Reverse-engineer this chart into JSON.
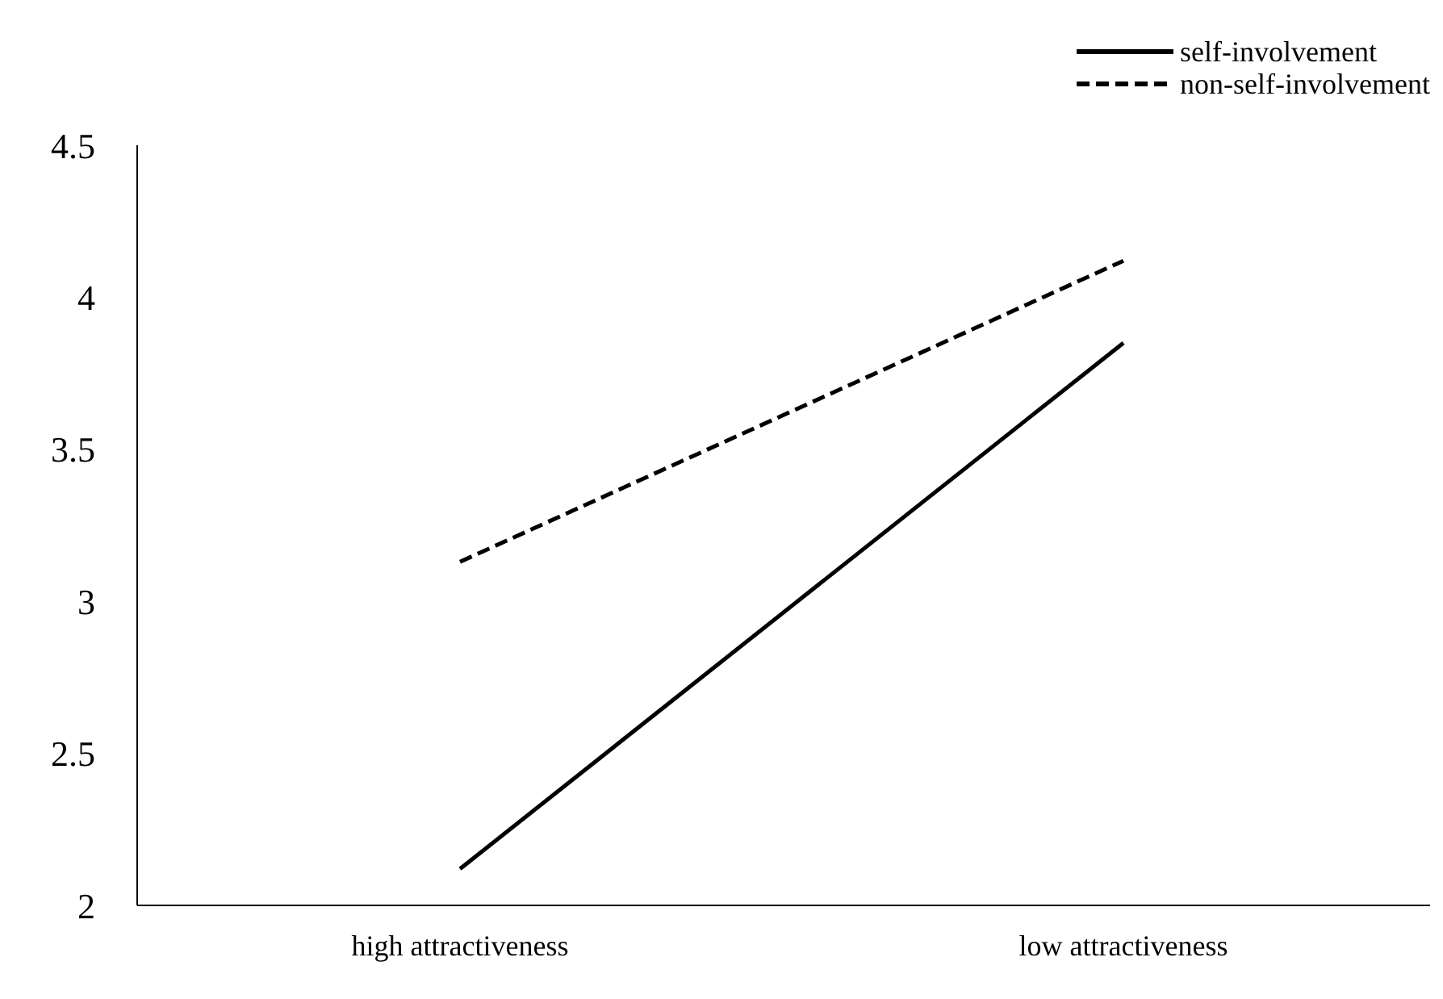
{
  "chart_data": {
    "type": "line",
    "categories": [
      "high attractiveness",
      "low attractiveness"
    ],
    "series": [
      {
        "name": "self-involvement",
        "color": "#000000",
        "values": [
          2.12,
          3.85
        ],
        "line_style": "solid"
      },
      {
        "name": "non-self-involvement",
        "color": "#000000",
        "values": [
          3.13,
          4.12
        ],
        "line_style": "dashed"
      }
    ],
    "ylim": [
      2,
      4.5
    ],
    "yticks": [
      2,
      2.5,
      3,
      3.5,
      4,
      4.5
    ],
    "grid": false,
    "legend": "top right",
    "marker": "none"
  }
}
